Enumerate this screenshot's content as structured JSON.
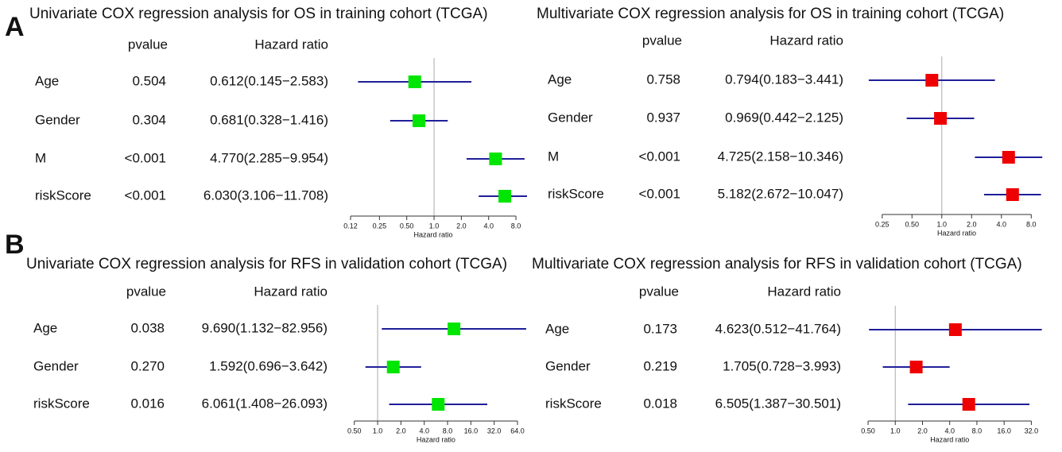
{
  "panel_labels": [
    "A",
    "B"
  ],
  "chart_data": [
    {
      "type": "forest",
      "title": "Univariate COX regression analysis for OS in training cohort (TCGA)",
      "column_headers": [
        "pvalue",
        "Hazard ratio"
      ],
      "x_label": "Hazard ratio",
      "log_scale": true,
      "categories": [
        "Age",
        "Gender",
        "M",
        "riskScore"
      ],
      "pvalues": [
        "0.504",
        "0.304",
        "<0.001",
        "<0.001"
      ],
      "values": [
        0.612,
        0.681,
        4.77,
        6.03
      ],
      "lower": [
        0.145,
        0.328,
        2.285,
        3.106
      ],
      "upper": [
        2.583,
        1.416,
        9.954,
        11.708
      ],
      "value_labels": [
        "0.612(0.145−2.583)",
        "0.681(0.328−1.416)",
        "4.770(2.285−9.954)",
        "6.030(3.106−11.708)"
      ],
      "xlim": [
        0.12,
        10.6
      ],
      "xticks": [
        0.12,
        0.25,
        {
          "value": 0.5,
          "label": "0.50"
        },
        {
          "value": 1,
          "label": "1.0"
        },
        {
          "value": 2,
          "label": "2.0"
        },
        {
          "value": 4,
          "label": "4.0"
        },
        {
          "value": 8,
          "label": "8.0"
        }
      ],
      "reference_line": 1,
      "color": "#00e600",
      "line_color": "#1f1f99"
    },
    {
      "type": "forest",
      "title": "Multivariate COX regression analysis for OS in training cohort (TCGA)",
      "column_headers": [
        "pvalue",
        "Hazard ratio"
      ],
      "x_label": "Hazard ratio",
      "log_scale": true,
      "categories": [
        "Age",
        "Gender",
        "M",
        "riskScore"
      ],
      "pvalues": [
        "0.758",
        "0.937",
        "<0.001",
        "<0.001"
      ],
      "values": [
        0.794,
        0.969,
        4.725,
        5.182
      ],
      "lower": [
        0.183,
        0.442,
        2.158,
        2.672
      ],
      "upper": [
        3.441,
        2.125,
        10.346,
        10.047
      ],
      "value_labels": [
        "0.794(0.183−3.441)",
        "0.969(0.442−2.125)",
        "4.725(2.158−10.346)",
        "5.182(2.672−10.047)"
      ],
      "xlim": [
        0.18,
        10.5
      ],
      "xticks": [
        0.25,
        {
          "value": 0.5,
          "label": "0.50"
        },
        {
          "value": 1,
          "label": "1.0"
        },
        {
          "value": 2,
          "label": "2.0"
        },
        {
          "value": 4,
          "label": "4.0"
        },
        {
          "value": 8,
          "label": "8.0"
        }
      ],
      "reference_line": 1,
      "color": "#ee0000",
      "line_color": "#1f1f99"
    },
    {
      "type": "forest",
      "title": "Univariate COX regression analysis for RFS in validation cohort (TCGA)",
      "column_headers": [
        "pvalue",
        "Hazard ratio"
      ],
      "x_label": "Hazard ratio",
      "log_scale": true,
      "categories": [
        "Age",
        "Gender",
        "riskScore"
      ],
      "pvalues": [
        "0.038",
        "0.270",
        "0.016"
      ],
      "values": [
        9.69,
        1.592,
        6.061
      ],
      "lower": [
        1.132,
        0.696,
        1.408
      ],
      "upper": [
        82.956,
        3.642,
        26.093
      ],
      "value_labels": [
        "9.690(1.132−82.956)",
        "1.592(0.696−3.642)",
        "6.061(1.408−26.093)"
      ],
      "xlim": [
        0.48,
        85
      ],
      "xticks": [
        {
          "value": 0.5,
          "label": "0.50"
        },
        {
          "value": 1,
          "label": "1.0"
        },
        {
          "value": 2,
          "label": "2.0"
        },
        {
          "value": 4,
          "label": "4.0"
        },
        {
          "value": 8,
          "label": "8.0"
        },
        {
          "value": 16,
          "label": "16.0"
        },
        {
          "value": 32,
          "label": "32.0"
        },
        {
          "value": 64,
          "label": "64.0"
        }
      ],
      "reference_line": 1,
      "color": "#00e600",
      "line_color": "#1f1f99"
    },
    {
      "type": "forest",
      "title": "Multivariate COX regression analysis for RFS in validation cohort (TCGA)",
      "column_headers": [
        "pvalue",
        "Hazard ratio"
      ],
      "x_label": "Hazard ratio",
      "log_scale": true,
      "categories": [
        "Age",
        "Gender",
        "riskScore"
      ],
      "pvalues": [
        "0.173",
        "0.219",
        "0.018"
      ],
      "values": [
        4.623,
        1.705,
        6.505
      ],
      "lower": [
        0.512,
        0.728,
        1.387
      ],
      "upper": [
        41.764,
        3.993,
        30.501
      ],
      "value_labels": [
        "4.623(0.512−41.764)",
        "1.705(0.728−3.993)",
        "6.505(1.387−30.501)"
      ],
      "xlim": [
        0.48,
        43
      ],
      "xticks": [
        {
          "value": 0.5,
          "label": "0.50"
        },
        {
          "value": 1,
          "label": "1.0"
        },
        {
          "value": 2,
          "label": "2.0"
        },
        {
          "value": 4,
          "label": "4.0"
        },
        {
          "value": 8,
          "label": "8.0"
        },
        {
          "value": 16,
          "label": "16.0"
        },
        {
          "value": 32,
          "label": "32.0"
        }
      ],
      "reference_line": 1,
      "color": "#ee0000",
      "line_color": "#1f1f99"
    }
  ]
}
